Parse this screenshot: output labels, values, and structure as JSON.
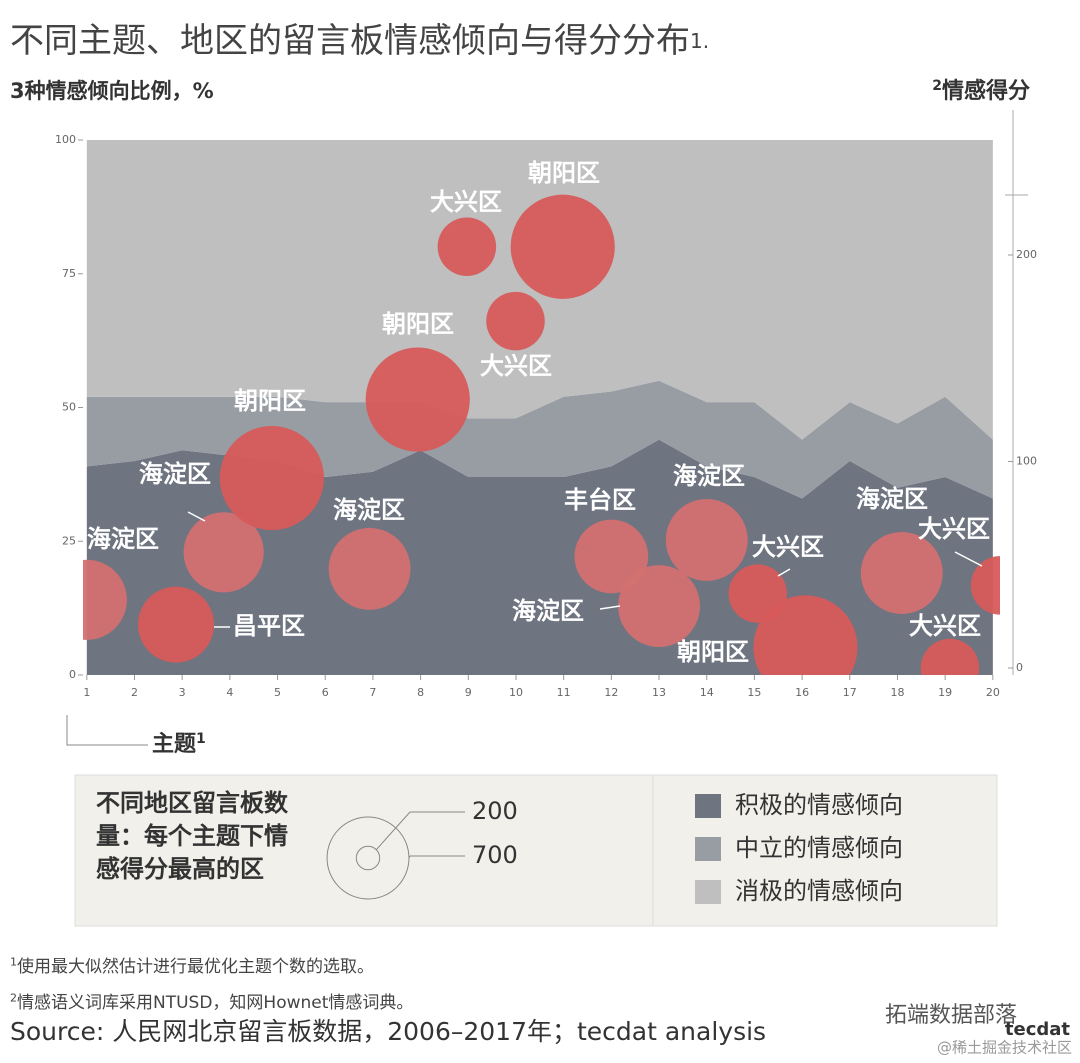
{
  "chart_data": {
    "type": "stacked-area-bubble",
    "title": "不同主题、地区的留言板情感倾向与得分分布",
    "title_note": "1.",
    "ylabel": "3种情感倾向比例，%",
    "y2label": {
      "mark": "2",
      "text": "情感得分"
    },
    "xlabel": {
      "text": "主题",
      "mark": "1"
    },
    "x": [
      1,
      2,
      3,
      4,
      5,
      6,
      7,
      8,
      9,
      10,
      11,
      12,
      13,
      14,
      15,
      16,
      17,
      18,
      19,
      20
    ],
    "xlim": [
      0.92,
      20.15
    ],
    "xticks": [
      1,
      2,
      3,
      4,
      5,
      6,
      7,
      8,
      9,
      10,
      11,
      12,
      13,
      14,
      15,
      16,
      17,
      18,
      19,
      20
    ],
    "ylim": [
      0,
      100
    ],
    "yticks": [
      0,
      25,
      50,
      75,
      100
    ],
    "y2lim": [
      -3.4,
      255.7
    ],
    "y2ticks": [
      0,
      100,
      200
    ],
    "series": [
      {
        "name": "积极的情感倾向",
        "color": "#6e7480",
        "values": [
          39,
          40,
          42,
          41,
          40,
          37,
          38,
          42,
          37,
          37,
          37,
          39,
          44,
          39,
          37,
          33,
          40,
          35,
          37,
          33
        ]
      },
      {
        "name": "中立的情感倾向",
        "color": "#989da4",
        "values": [
          13,
          12,
          10,
          11,
          12,
          14,
          13,
          9,
          11,
          11,
          15,
          14,
          11,
          12,
          14,
          11,
          11,
          12,
          15,
          11
        ]
      },
      {
        "name": "消极的情感倾向",
        "color": "#bfbfbf",
        "values": [
          48,
          48,
          48,
          48,
          48,
          49,
          49,
          49,
          52,
          52,
          48,
          47,
          45,
          49,
          49,
          56,
          49,
          53,
          48,
          56
        ]
      }
    ],
    "bubbles": [
      {
        "label": "海淀区",
        "x": 1,
        "y": 33,
        "size": 685,
        "color": "#d37070"
      },
      {
        "label": "昌平区",
        "x": 2.87,
        "y": 21,
        "size": 650,
        "color": "#d75a5a"
      },
      {
        "label": "海淀区",
        "x": 3.87,
        "y": 56,
        "size": 685,
        "color": "#d37070"
      },
      {
        "label": "朝阳区",
        "x": 4.88,
        "y": 92,
        "size": 890,
        "color": "#d75a5a"
      },
      {
        "label": "海淀区",
        "x": 6.93,
        "y": 48,
        "size": 700,
        "color": "#d37070"
      },
      {
        "label": "朝阳区",
        "x": 7.94,
        "y": 130,
        "size": 890,
        "color": "#d75a5a"
      },
      {
        "label": "大兴区",
        "x": 8.97,
        "y": 204,
        "size": 500,
        "color": "#d75a5a"
      },
      {
        "label": "大兴区",
        "x": 9.99,
        "y": 168,
        "size": 500,
        "color": "#d75a5a"
      },
      {
        "label": "朝阳区",
        "x": 10.98,
        "y": 204,
        "size": 890,
        "color": "#d75a5a"
      },
      {
        "label": "丰台区",
        "x": 12,
        "y": 54,
        "size": 630,
        "color": "#d37070"
      },
      {
        "label": "海淀区",
        "x": 13,
        "y": 30,
        "size": 700,
        "color": "#d37070"
      },
      {
        "label": "海淀区",
        "x": 14,
        "y": 62,
        "size": 700,
        "color": "#d37070"
      },
      {
        "label": "大兴区",
        "x": 15.07,
        "y": 36,
        "size": 500,
        "color": "#d75a5a"
      },
      {
        "label": "朝阳区",
        "x": 16.07,
        "y": 10,
        "size": 890,
        "color": "#d75a5a"
      },
      {
        "label": "海淀区",
        "x": 18.09,
        "y": 46,
        "size": 700,
        "color": "#d37070"
      },
      {
        "label": "大兴区",
        "x": 19.1,
        "y": 0,
        "size": 500,
        "color": "#d75a5a"
      },
      {
        "label": "大兴区",
        "x": 20.15,
        "y": 40,
        "size": 500,
        "color": "#d75a5a"
      }
    ],
    "size_legend": {
      "title": "不同地区留言板数量：每个主题下情感得分最高的区",
      "sizes": [
        200,
        700
      ]
    }
  },
  "footnotes": [
    {
      "mark": "1",
      "text": "使用最大似然估计进行最优化主题个数的选取。"
    },
    {
      "mark": "2",
      "text": "情感语义词库采用NTUSD，知网Hownet情感词典。"
    }
  ],
  "source": "Source: 人民网北京留言板数据，2006–2017年；tecdat analysis",
  "watermark": [
    "拓端数据部落",
    "tecdat",
    "@稀土掘金技术社区"
  ]
}
